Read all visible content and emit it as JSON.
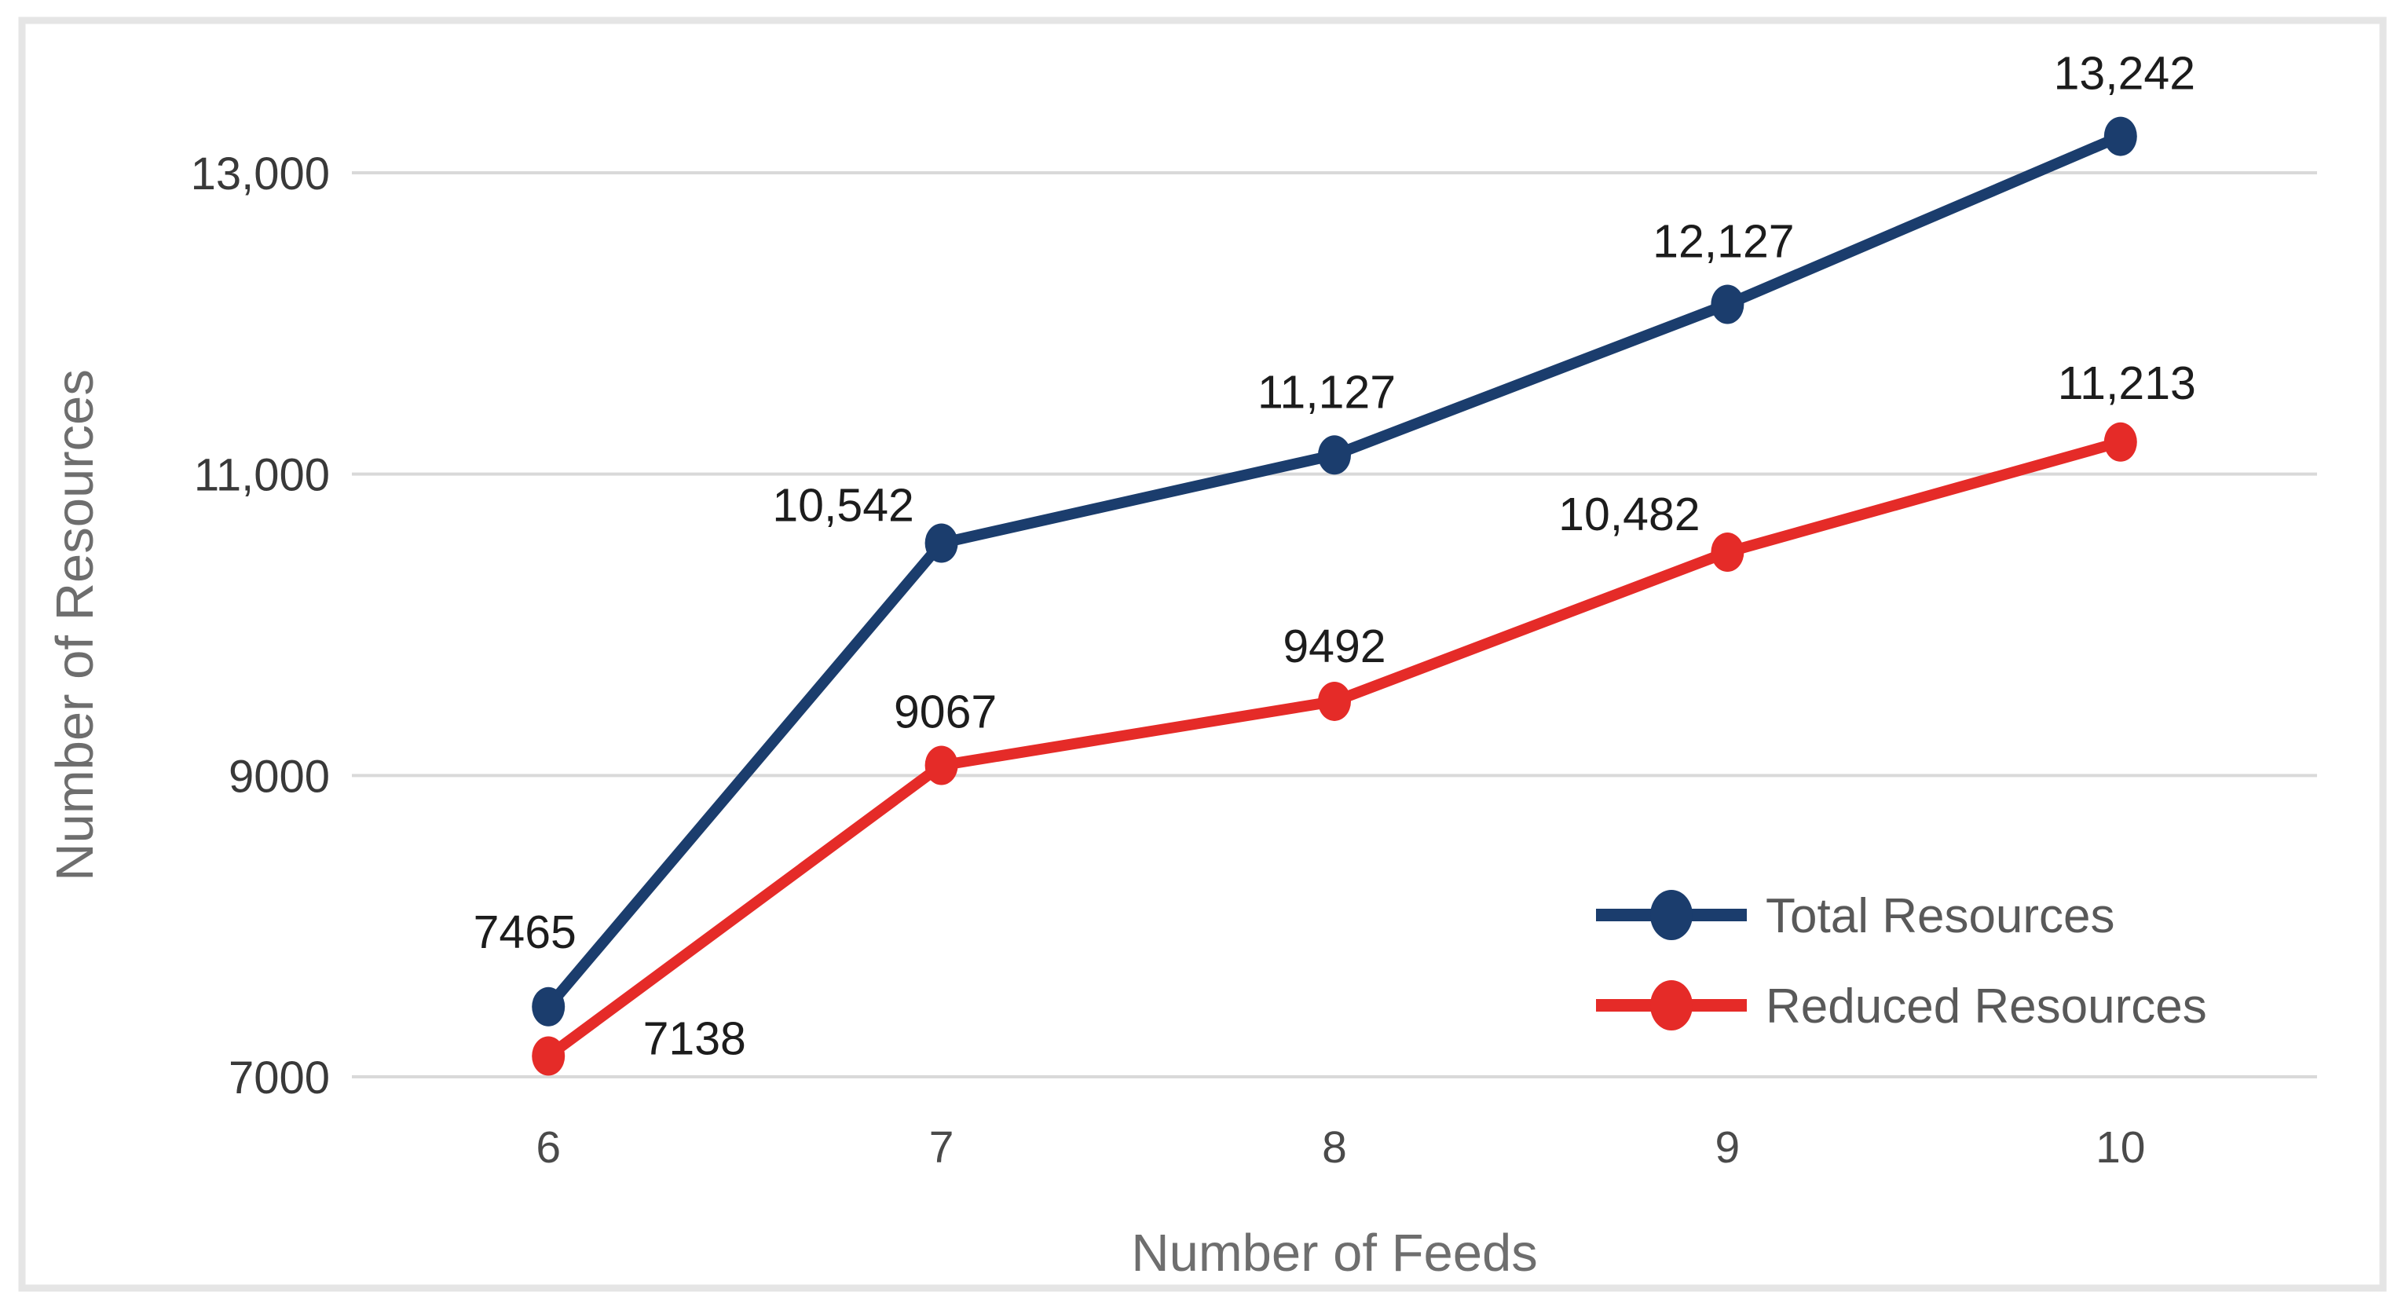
{
  "chart_data": {
    "type": "line",
    "title": "",
    "xlabel": "Number of Feeds",
    "ylabel": "Number of Resources",
    "categories": [
      6,
      7,
      8,
      9,
      10
    ],
    "xtick_labels": [
      "6",
      "7",
      "8",
      "9",
      "10"
    ],
    "series": [
      {
        "name": "Total Resources",
        "color": "#1b3d6d",
        "values": [
          7465,
          10542,
          11127,
          12127,
          13242
        ],
        "point_labels": [
          "7465",
          "10,542",
          "11,127",
          "12,127",
          "13,242"
        ]
      },
      {
        "name": "Reduced Resources",
        "color": "#e52b28",
        "values": [
          7138,
          9067,
          9492,
          10482,
          11213
        ],
        "point_labels": [
          "7138",
          "9067",
          "9492",
          "10,482",
          "11,213"
        ]
      }
    ],
    "ylim": [
      7000,
      13000
    ],
    "yticks": [
      7000,
      9000,
      11000,
      13000
    ],
    "ytick_labels": [
      "7000",
      "9000",
      "11,000",
      "13,000"
    ],
    "grid": true,
    "gridline_color": "#d9d9d9",
    "frame_color": "#e5e5e5",
    "legend_position": "inside-bottom-right",
    "marker_style": "filled-circle"
  }
}
